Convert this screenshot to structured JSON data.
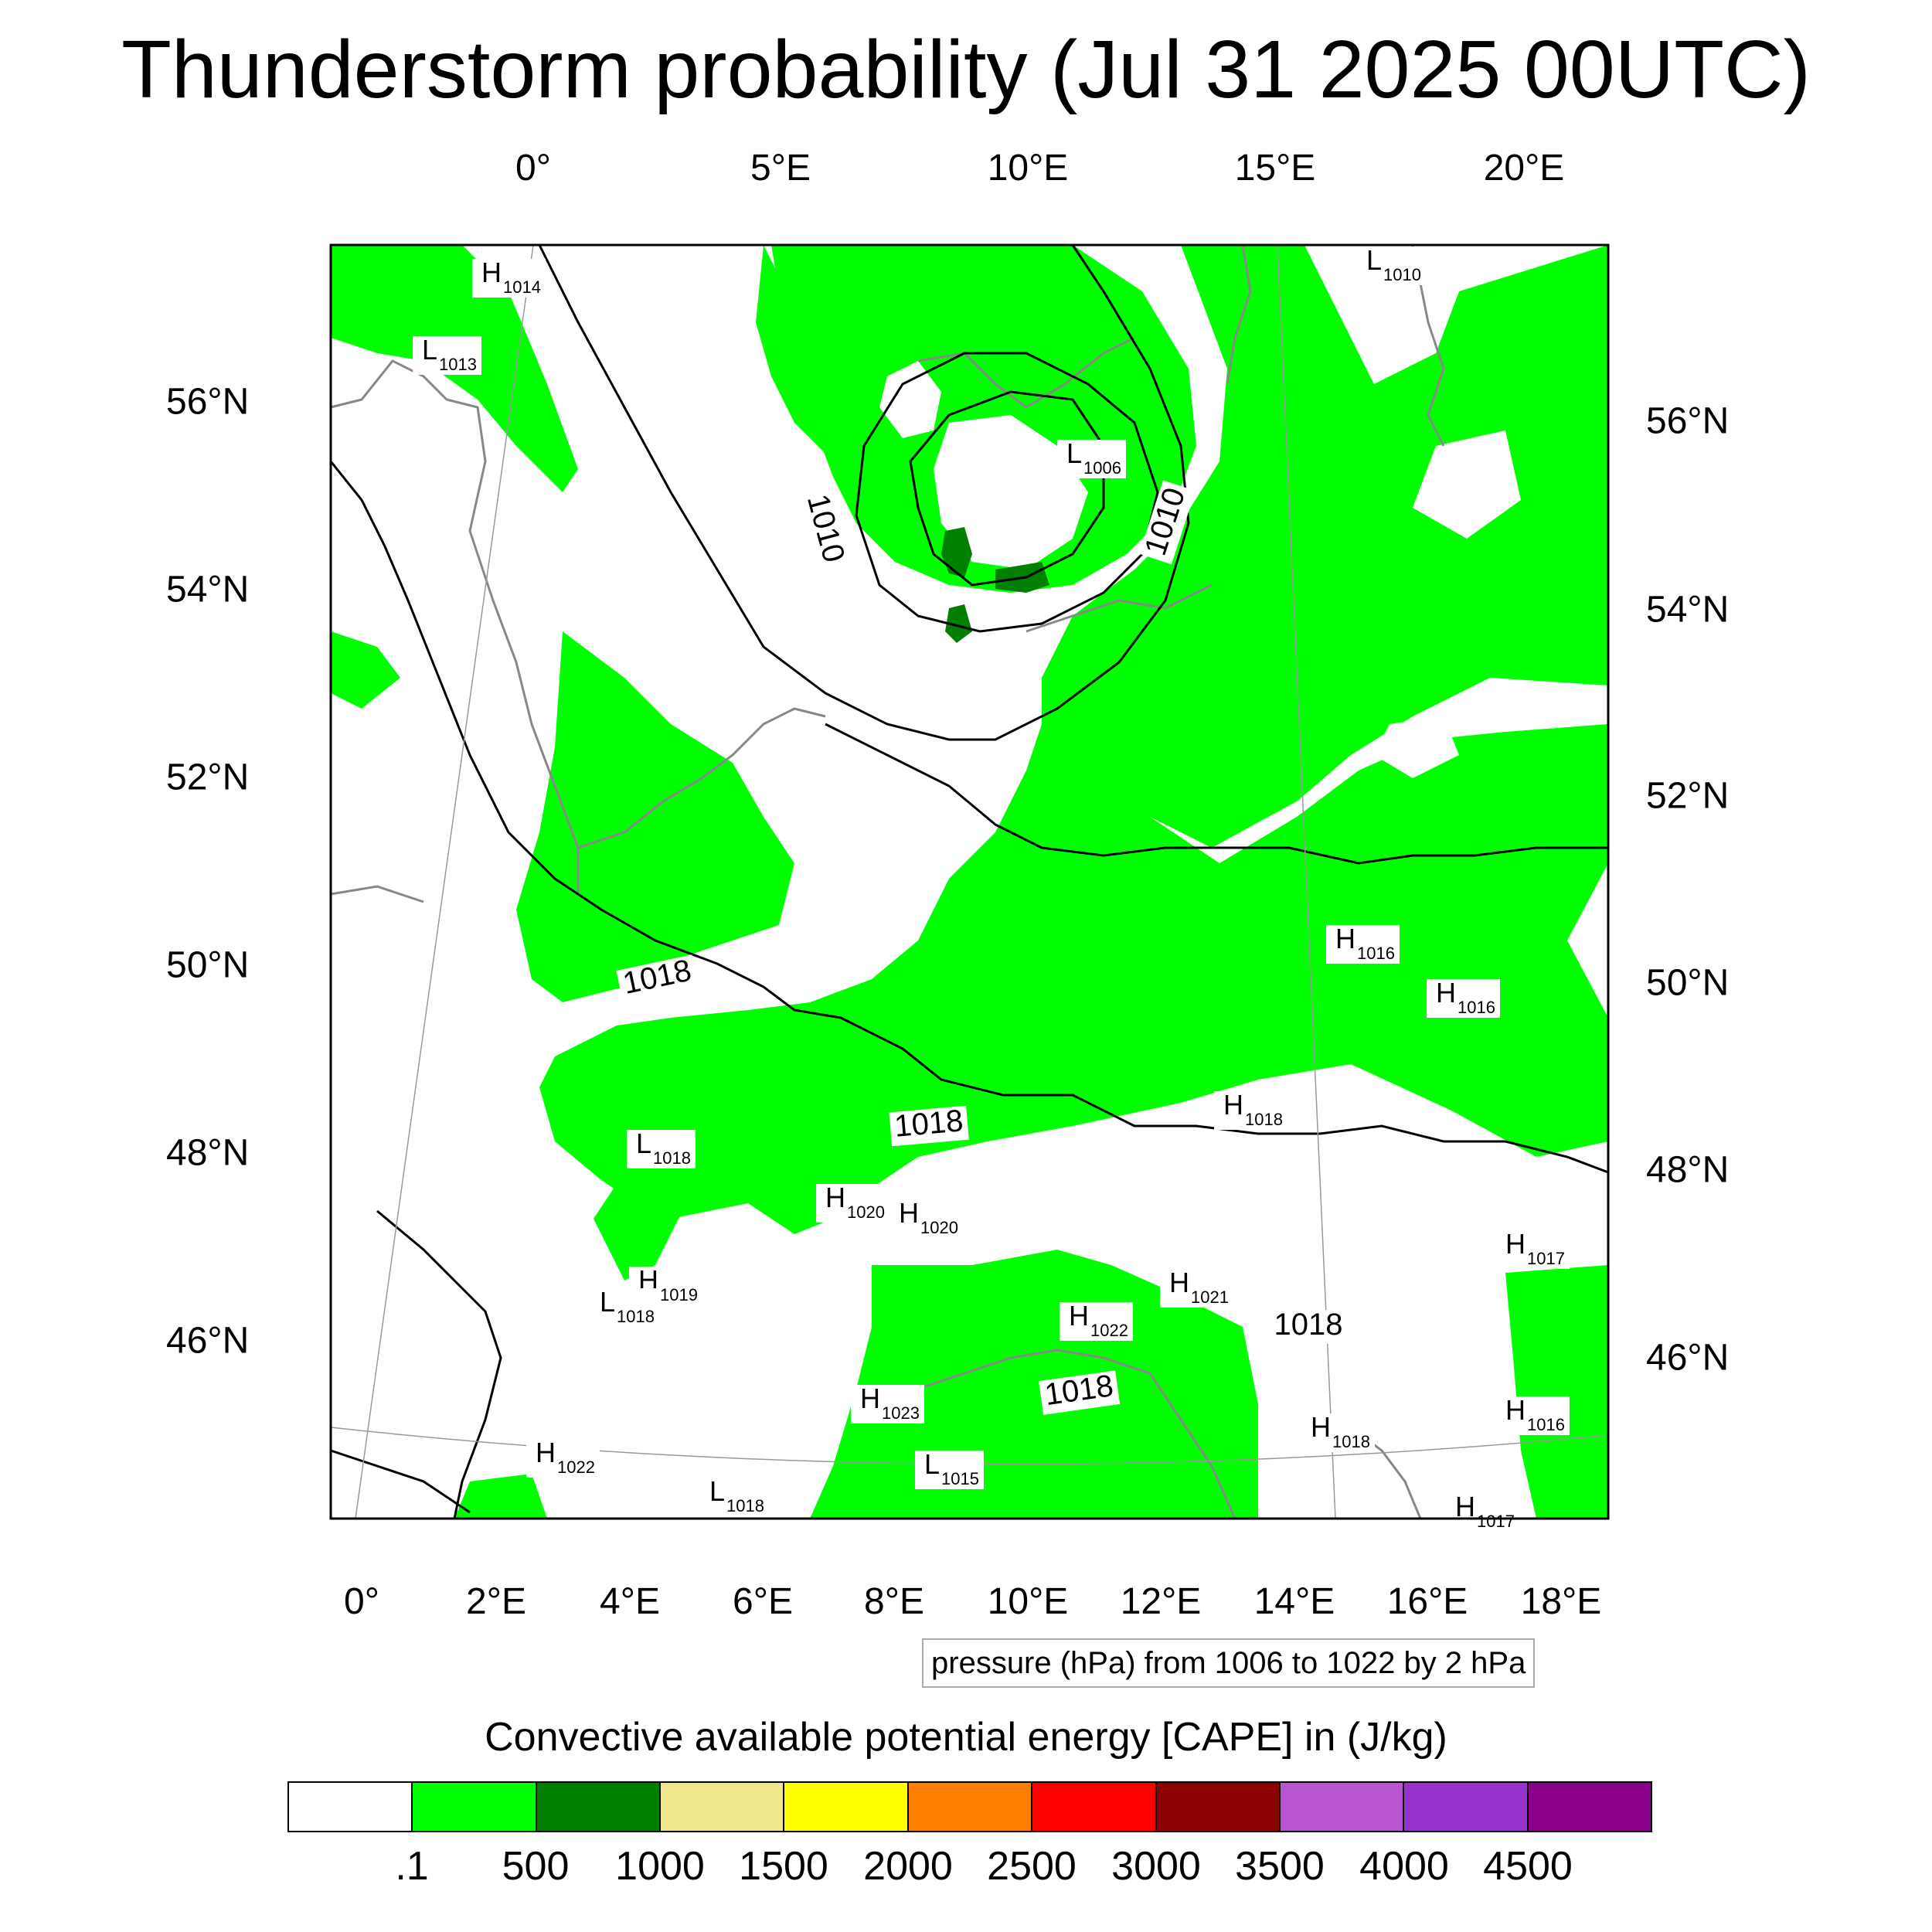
{
  "title": "Thunderstorm probability (Jul 31 2025 00UTC)",
  "axes": {
    "top_lon_labels": [
      "0°",
      "5°E",
      "10°E",
      "15°E",
      "20°E"
    ],
    "bottom_lon_labels": [
      "0°",
      "2°E",
      "4°E",
      "6°E",
      "8°E",
      "10°E",
      "12°E",
      "14°E",
      "16°E",
      "18°E"
    ],
    "left_lat_labels": [
      "56°N",
      "54°N",
      "52°N",
      "50°N",
      "48°N",
      "46°N"
    ],
    "right_lat_labels": [
      "56°N",
      "54°N",
      "52°N",
      "50°N",
      "48°N",
      "46°N"
    ]
  },
  "map": {
    "pressure_centers": [
      {
        "type": "H",
        "value": "1014"
      },
      {
        "type": "L",
        "value": "1013"
      },
      {
        "type": "L",
        "value": "1006"
      },
      {
        "type": "L",
        "value": "1010"
      },
      {
        "type": "H",
        "value": "1016"
      },
      {
        "type": "H",
        "value": "1016"
      },
      {
        "type": "H",
        "value": "1018"
      },
      {
        "type": "L",
        "value": "1018"
      },
      {
        "type": "H",
        "value": "1020"
      },
      {
        "type": "H",
        "value": "1020"
      },
      {
        "type": "H",
        "value": "1019"
      },
      {
        "type": "L",
        "value": "1018"
      },
      {
        "type": "H",
        "value": "1021"
      },
      {
        "type": "H",
        "value": "1022"
      },
      {
        "type": "H",
        "value": "1017"
      },
      {
        "type": "H",
        "value": "1023"
      },
      {
        "type": "H",
        "value": "1016"
      },
      {
        "type": "H",
        "value": "1018"
      },
      {
        "type": "H",
        "value": "1022"
      },
      {
        "type": "L",
        "value": "1015"
      },
      {
        "type": "L",
        "value": "1018"
      },
      {
        "type": "H",
        "value": "1017"
      }
    ],
    "isobar_labels": [
      "1010",
      "1010",
      "1018",
      "1018",
      "1018",
      "1018"
    ],
    "colors": {
      "land_green": "#00ff00",
      "dark_green": "#007f00",
      "isobar": "#000000",
      "coast": "#888888"
    }
  },
  "contour_info": "pressure (hPa) from 1006 to 1022 by 2 hPa",
  "legend": {
    "title": "Convective available potential energy [CAPE] in (J/kg)",
    "colors": [
      "#ffffff",
      "#00ff00",
      "#007f00",
      "#f0e68c",
      "#ffff00",
      "#ff8000",
      "#ff0000",
      "#8b0000",
      "#ba55d3",
      "#9932cc",
      "#8b008b"
    ],
    "labels": [
      ".1",
      "500",
      "1000",
      "1500",
      "2000",
      "2500",
      "3000",
      "3500",
      "4000",
      "4500"
    ]
  }
}
